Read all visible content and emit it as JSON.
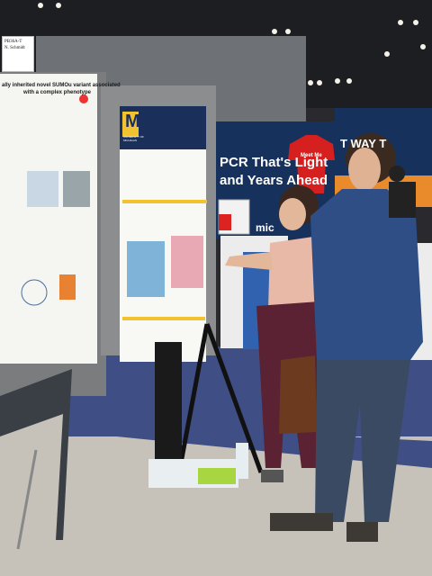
{
  "booth_banner": {
    "line1": "PCR That's Light",
    "line2": "and Years Ahead",
    "partial": "mic"
  },
  "right_banner": {
    "text": "T   WAY T"
  },
  "poster_left": {
    "title": "ally inherited novel SUMOu variant associated",
    "subtitle": "with a complex phenotype"
  },
  "poster_center": {
    "logo": "M",
    "institution_line1": "UNIVERSITY OF",
    "institution_line2": "MICHIGAN"
  },
  "board_sign": {
    "line1": "PB36A-T",
    "line2": "N. Schmidt"
  },
  "shirt": {
    "text": "Meet Me"
  },
  "colors": {
    "banner_blue": "#16325c",
    "umich_maize": "#f2c230",
    "umich_blue": "#1a2f5a",
    "carpet": "#3f4f86",
    "floor": "#c6c2ba"
  }
}
